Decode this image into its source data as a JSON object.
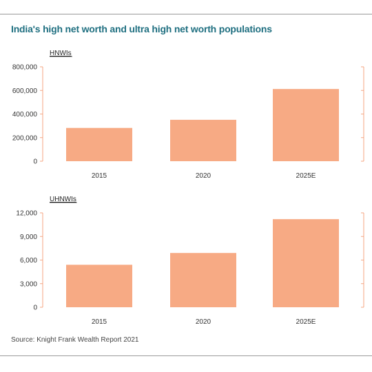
{
  "title": "India's high net worth and ultra high net worth populations",
  "source": "Source: Knight Frank Wealth Report 2021",
  "colors": {
    "bar": "#f7aa84",
    "axis": "#f4a582",
    "title": "#1f6f80"
  },
  "chart_data": [
    {
      "type": "bar",
      "panel_label": "HNWIs",
      "categories": [
        "2015",
        "2020",
        "2025E"
      ],
      "values": [
        282000,
        351000,
        612000
      ],
      "yticks": [
        "0",
        "200,000",
        "400,000",
        "600,000",
        "800,000"
      ],
      "ylim": [
        0,
        800000
      ]
    },
    {
      "type": "bar",
      "panel_label": "UHNWIs",
      "categories": [
        "2015",
        "2020",
        "2025E"
      ],
      "values": [
        5400,
        6900,
        11200
      ],
      "yticks": [
        "0",
        "3,000",
        "6,000",
        "9,000",
        "12,000"
      ],
      "ylim": [
        0,
        12000
      ]
    }
  ]
}
